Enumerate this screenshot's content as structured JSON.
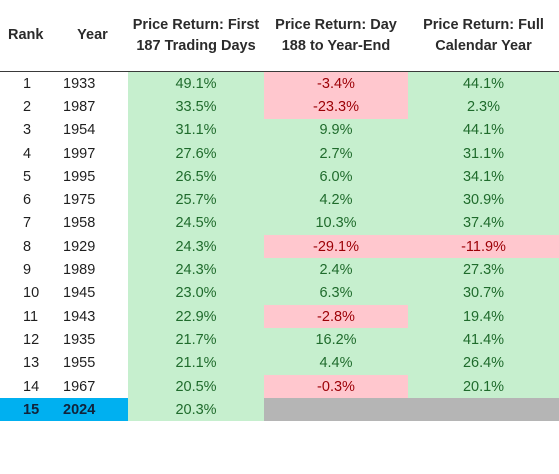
{
  "table": {
    "headers": {
      "rank": "Rank",
      "year": "Year",
      "first": "Price Return: First 187 Trading Days",
      "rest": "Price Return: Day 188 to Year-End",
      "full": "Price Return: Full Calendar Year"
    },
    "rows": [
      {
        "rank": "1",
        "year": "1933",
        "first": "49.1%",
        "rest": "-3.4%",
        "full": "44.1%"
      },
      {
        "rank": "2",
        "year": "1987",
        "first": "33.5%",
        "rest": "-23.3%",
        "full": "2.3%"
      },
      {
        "rank": "3",
        "year": "1954",
        "first": "31.1%",
        "rest": "9.9%",
        "full": "44.1%"
      },
      {
        "rank": "4",
        "year": "1997",
        "first": "27.6%",
        "rest": "2.7%",
        "full": "31.1%"
      },
      {
        "rank": "5",
        "year": "1995",
        "first": "26.5%",
        "rest": "6.0%",
        "full": "34.1%"
      },
      {
        "rank": "6",
        "year": "1975",
        "first": "25.7%",
        "rest": "4.2%",
        "full": "30.9%"
      },
      {
        "rank": "7",
        "year": "1958",
        "first": "24.5%",
        "rest": "10.3%",
        "full": "37.4%"
      },
      {
        "rank": "8",
        "year": "1929",
        "first": "24.3%",
        "rest": "-29.1%",
        "full": "-11.9%"
      },
      {
        "rank": "9",
        "year": "1989",
        "first": "24.3%",
        "rest": "2.4%",
        "full": "27.3%"
      },
      {
        "rank": "10",
        "year": "1945",
        "first": "23.0%",
        "rest": "6.3%",
        "full": "30.7%"
      },
      {
        "rank": "11",
        "year": "1943",
        "first": "22.9%",
        "rest": "-2.8%",
        "full": "19.4%"
      },
      {
        "rank": "12",
        "year": "1935",
        "first": "21.7%",
        "rest": "16.2%",
        "full": "41.4%"
      },
      {
        "rank": "13",
        "year": "1955",
        "first": "21.1%",
        "rest": "4.4%",
        "full": "26.4%"
      },
      {
        "rank": "14",
        "year": "1967",
        "first": "20.5%",
        "rest": "-0.3%",
        "full": "20.1%"
      },
      {
        "rank": "15",
        "year": "2024",
        "first": "20.3%",
        "rest": "",
        "full": ""
      }
    ]
  },
  "colors": {
    "positive_fill": "#c6efce",
    "negative_fill": "#ffc7ce",
    "highlight_fill": "#00b0f0",
    "empty_fill": "#b5b5b5"
  }
}
